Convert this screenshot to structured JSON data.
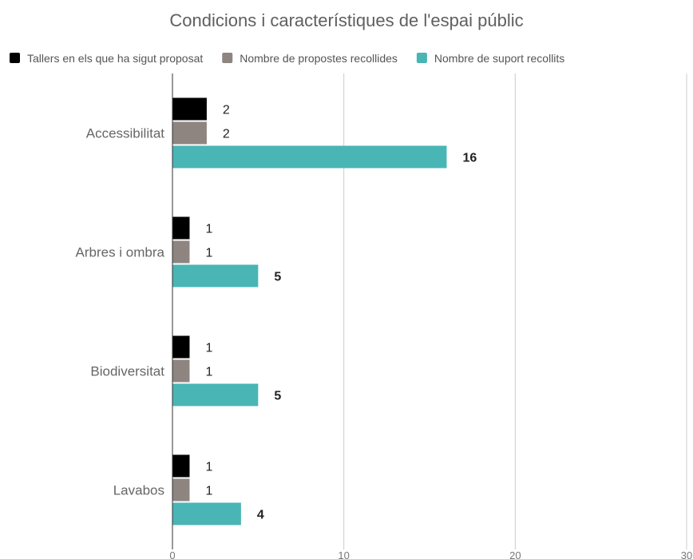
{
  "chart_data": {
    "type": "bar",
    "orientation": "horizontal",
    "title": "Condicions i característiques de l'espai públic",
    "categories": [
      "Accessibilitat",
      "Arbres i ombra",
      "Biodiversitat",
      "Lavabos"
    ],
    "series": [
      {
        "name": "Tallers en els que ha sigut proposat",
        "color": "#000000",
        "values": [
          2,
          1,
          1,
          1
        ],
        "label_weight": "normal"
      },
      {
        "name": "Nombre de propostes recollides",
        "color": "#8f8580",
        "values": [
          2,
          1,
          1,
          1
        ],
        "label_weight": "normal"
      },
      {
        "name": "Nombre de suport recollits",
        "color": "#49b5b5",
        "values": [
          16,
          5,
          5,
          4
        ],
        "label_weight": "bold"
      }
    ],
    "xlim": [
      0,
      30
    ],
    "x_ticks": [
      "0",
      "10",
      "20",
      "30"
    ],
    "grid": true,
    "legend_position": "top",
    "xlabel": "",
    "ylabel": ""
  }
}
